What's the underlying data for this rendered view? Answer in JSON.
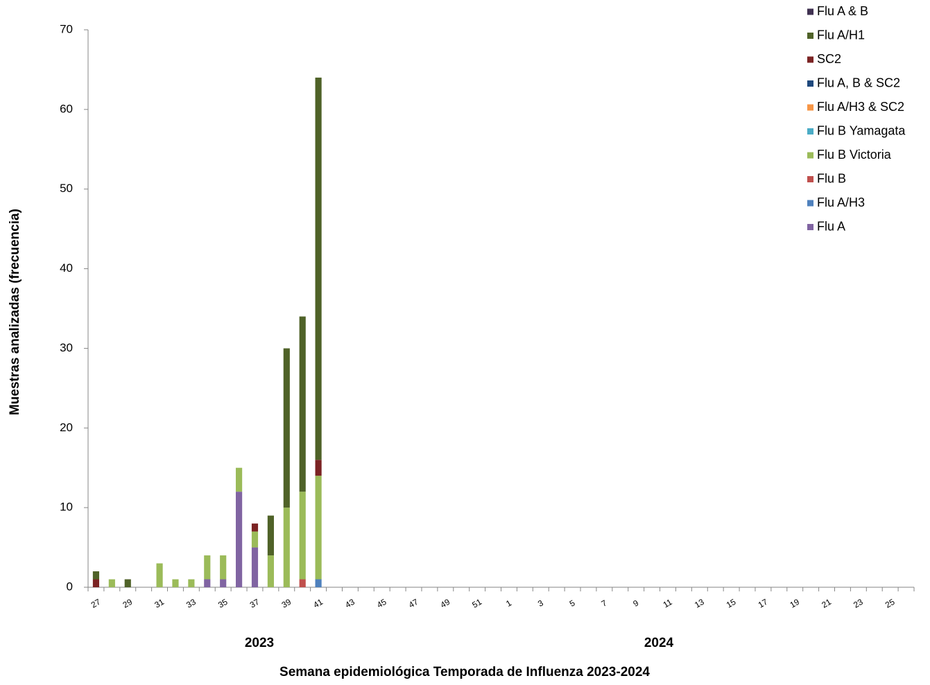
{
  "chart_data": {
    "type": "stacked-bar",
    "y_label": "Muestras analizadas (frecuencia)",
    "x_label": "Semana epidemiológica Temporada de Influenza 2023-2024",
    "x_group_labels": [
      "2023",
      "2024"
    ],
    "categories": [
      "27",
      null,
      "29",
      null,
      "31",
      null,
      "33",
      null,
      "35",
      null,
      "37",
      null,
      "39",
      null,
      "41",
      null,
      "43",
      null,
      "45",
      null,
      "47",
      null,
      "49",
      null,
      "51",
      null,
      "1",
      null,
      "3",
      null,
      "5",
      null,
      "7",
      null,
      "9",
      null,
      "11",
      null,
      "13",
      null,
      "15",
      null,
      "17",
      null,
      "19",
      null,
      "21",
      null,
      "23",
      null,
      "25",
      null
    ],
    "ylim": [
      0,
      70
    ],
    "yticks": [
      0,
      10,
      20,
      30,
      40,
      50,
      60,
      70
    ],
    "grid": false,
    "series": [
      {
        "name": "Flu A",
        "color": "#8064a2",
        "values": [
          0,
          0,
          0,
          0,
          0,
          0,
          0,
          1,
          1,
          12,
          5,
          0,
          0,
          0,
          0,
          0,
          0,
          0,
          0,
          0,
          0,
          0,
          0,
          0,
          0,
          0,
          0,
          0,
          0,
          0,
          0,
          0,
          0,
          0,
          0,
          0,
          0,
          0,
          0,
          0,
          0,
          0,
          0,
          0,
          0,
          0,
          0,
          0,
          0,
          0,
          0,
          0
        ]
      },
      {
        "name": "Flu A/H3",
        "color": "#4f81bd",
        "values": [
          0,
          0,
          0,
          0,
          0,
          0,
          0,
          0,
          0,
          0,
          0,
          0,
          0,
          0,
          1,
          0,
          0,
          0,
          0,
          0,
          0,
          0,
          0,
          0,
          0,
          0,
          0,
          0,
          0,
          0,
          0,
          0,
          0,
          0,
          0,
          0,
          0,
          0,
          0,
          0,
          0,
          0,
          0,
          0,
          0,
          0,
          0,
          0,
          0,
          0,
          0,
          0
        ]
      },
      {
        "name": "Flu B",
        "color": "#c0504d",
        "values": [
          0,
          0,
          0,
          0,
          0,
          0,
          0,
          0,
          0,
          0,
          0,
          0,
          0,
          1,
          0,
          0,
          0,
          0,
          0,
          0,
          0,
          0,
          0,
          0,
          0,
          0,
          0,
          0,
          0,
          0,
          0,
          0,
          0,
          0,
          0,
          0,
          0,
          0,
          0,
          0,
          0,
          0,
          0,
          0,
          0,
          0,
          0,
          0,
          0,
          0,
          0,
          0
        ]
      },
      {
        "name": "Flu B Victoria",
        "color": "#9bbb59",
        "values": [
          0,
          1,
          0,
          0,
          3,
          1,
          1,
          3,
          3,
          3,
          2,
          4,
          10,
          11,
          13,
          0,
          0,
          0,
          0,
          0,
          0,
          0,
          0,
          0,
          0,
          0,
          0,
          0,
          0,
          0,
          0,
          0,
          0,
          0,
          0,
          0,
          0,
          0,
          0,
          0,
          0,
          0,
          0,
          0,
          0,
          0,
          0,
          0,
          0,
          0,
          0,
          0
        ]
      },
      {
        "name": "Flu B Yamagata",
        "color": "#4bacc6",
        "values": [
          0,
          0,
          0,
          0,
          0,
          0,
          0,
          0,
          0,
          0,
          0,
          0,
          0,
          0,
          0,
          0,
          0,
          0,
          0,
          0,
          0,
          0,
          0,
          0,
          0,
          0,
          0,
          0,
          0,
          0,
          0,
          0,
          0,
          0,
          0,
          0,
          0,
          0,
          0,
          0,
          0,
          0,
          0,
          0,
          0,
          0,
          0,
          0,
          0,
          0,
          0,
          0
        ]
      },
      {
        "name": "Flu A/H3 & SC2",
        "color": "#f79646",
        "values": [
          0,
          0,
          0,
          0,
          0,
          0,
          0,
          0,
          0,
          0,
          0,
          0,
          0,
          0,
          0,
          0,
          0,
          0,
          0,
          0,
          0,
          0,
          0,
          0,
          0,
          0,
          0,
          0,
          0,
          0,
          0,
          0,
          0,
          0,
          0,
          0,
          0,
          0,
          0,
          0,
          0,
          0,
          0,
          0,
          0,
          0,
          0,
          0,
          0,
          0,
          0,
          0
        ]
      },
      {
        "name": "Flu A, B & SC2",
        "color": "#1f497d",
        "values": [
          0,
          0,
          0,
          0,
          0,
          0,
          0,
          0,
          0,
          0,
          0,
          0,
          0,
          0,
          0,
          0,
          0,
          0,
          0,
          0,
          0,
          0,
          0,
          0,
          0,
          0,
          0,
          0,
          0,
          0,
          0,
          0,
          0,
          0,
          0,
          0,
          0,
          0,
          0,
          0,
          0,
          0,
          0,
          0,
          0,
          0,
          0,
          0,
          0,
          0,
          0,
          0
        ]
      },
      {
        "name": "SC2",
        "color": "#7b2323",
        "values": [
          1,
          0,
          0,
          0,
          0,
          0,
          0,
          0,
          0,
          0,
          1,
          0,
          0,
          0,
          2,
          0,
          0,
          0,
          0,
          0,
          0,
          0,
          0,
          0,
          0,
          0,
          0,
          0,
          0,
          0,
          0,
          0,
          0,
          0,
          0,
          0,
          0,
          0,
          0,
          0,
          0,
          0,
          0,
          0,
          0,
          0,
          0,
          0,
          0,
          0,
          0,
          0
        ]
      },
      {
        "name": "Flu A/H1",
        "color": "#4f6228",
        "values": [
          1,
          0,
          1,
          0,
          0,
          0,
          0,
          0,
          0,
          0,
          0,
          5,
          20,
          22,
          48,
          0,
          0,
          0,
          0,
          0,
          0,
          0,
          0,
          0,
          0,
          0,
          0,
          0,
          0,
          0,
          0,
          0,
          0,
          0,
          0,
          0,
          0,
          0,
          0,
          0,
          0,
          0,
          0,
          0,
          0,
          0,
          0,
          0,
          0,
          0,
          0,
          0
        ]
      },
      {
        "name": "Flu A & B",
        "color": "#403151",
        "values": [
          0,
          0,
          0,
          0,
          0,
          0,
          0,
          0,
          0,
          0,
          0,
          0,
          0,
          0,
          0,
          0,
          0,
          0,
          0,
          0,
          0,
          0,
          0,
          0,
          0,
          0,
          0,
          0,
          0,
          0,
          0,
          0,
          0,
          0,
          0,
          0,
          0,
          0,
          0,
          0,
          0,
          0,
          0,
          0,
          0,
          0,
          0,
          0,
          0,
          0,
          0,
          0
        ]
      }
    ]
  }
}
